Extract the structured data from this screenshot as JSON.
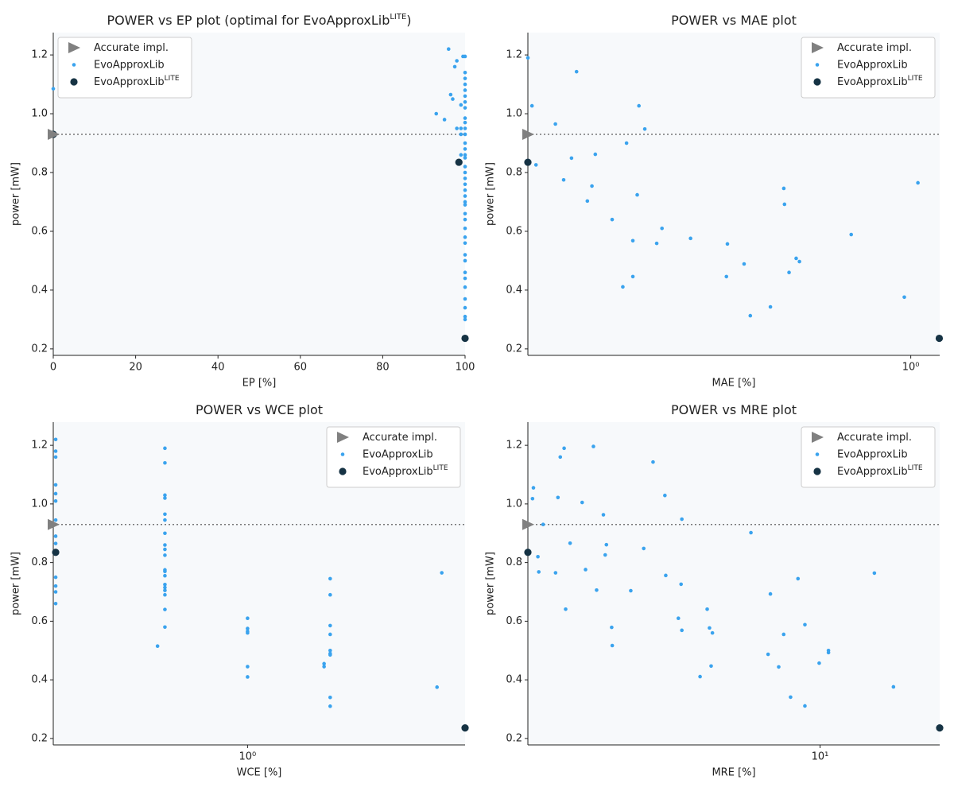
{
  "chart_data": [
    {
      "type": "scatter",
      "title": [
        "POWER vs EP plot (optimal for EvoApproxLib",
        "LITE",
        ")"
      ],
      "xlabel": "EP [%]",
      "ylabel": "power [mW]",
      "xscale": "linear",
      "xlim": [
        0,
        100
      ],
      "xticks": [
        0,
        20,
        40,
        60,
        80,
        100
      ],
      "ylim": [
        0.178,
        1.276
      ],
      "yticks": [
        0.2,
        0.4,
        0.6,
        0.8,
        {
          "value": 1,
          "label": "1.0"
        },
        1.2
      ],
      "legend": "upper left",
      "hline": true,
      "series": [
        {
          "name": "Accurate impl.",
          "color": "#808080",
          "marker": "triangle",
          "x": [
            0
          ],
          "values": [
            0.93
          ]
        },
        {
          "name": "EvoApproxLib",
          "color": "#3aa3ee",
          "marker": "dot",
          "x": [
            0,
            100,
            100,
            100,
            100,
            100,
            100,
            100,
            100,
            100,
            100,
            100,
            100,
            100,
            100,
            100,
            100,
            100,
            100,
            100,
            100,
            100,
            100,
            100,
            100,
            100,
            100,
            100,
            100,
            100,
            100,
            100,
            100,
            100,
            100,
            100,
            100,
            100,
            100,
            96,
            97.5,
            98,
            96.5,
            97,
            93,
            95,
            98,
            99,
            99,
            99.5,
            99,
            99
          ],
          "values": [
            1.085,
            1.195,
            1.14,
            1.12,
            1.1,
            1.08,
            1.06,
            1.04,
            1.02,
            0.985,
            0.97,
            0.95,
            0.93,
            0.9,
            0.88,
            0.86,
            0.85,
            0.82,
            0.8,
            0.78,
            0.76,
            0.74,
            0.72,
            0.7,
            0.69,
            0.66,
            0.64,
            0.61,
            0.58,
            0.56,
            0.52,
            0.5,
            0.46,
            0.44,
            0.41,
            0.37,
            0.34,
            0.31,
            0.3,
            1.22,
            1.16,
            1.18,
            1.065,
            1.05,
            1.0,
            0.98,
            0.95,
            0.95,
            1.03,
            1.195,
            0.93,
            0.86
          ]
        },
        {
          "name": "EvoApproxLib",
          "name_sup": "LITE",
          "color": "#163344",
          "marker": "circle",
          "x": [
            0,
            98.5,
            100
          ],
          "values": [
            0.93,
            0.835,
            0.236
          ]
        }
      ]
    },
    {
      "type": "scatter",
      "title": [
        "POWER vs MAE plot"
      ],
      "xlabel": "MAE [%]",
      "ylabel": "power [mW]",
      "xscale": "log",
      "xlim": [
        0.1,
        1.19
      ],
      "xticks": [
        {
          "value": 1,
          "label": "10⁰"
        }
      ],
      "ylim": [
        0.178,
        1.276
      ],
      "yticks": [
        0.2,
        0.4,
        0.6,
        0.8,
        {
          "value": 1,
          "label": "1.0"
        },
        1.2
      ],
      "legend": "upper right",
      "hline": true,
      "series": [
        {
          "name": "Accurate impl.",
          "color": "#808080",
          "marker": "triangle",
          "x": [
            0.1
          ],
          "values": [
            0.93
          ]
        },
        {
          "name": "EvoApproxLib",
          "color": "#3aa3ee",
          "marker": "dot",
          "x": [
            0.1,
            0.1025,
            0.118,
            0.134,
            0.13,
            0.105,
            0.124,
            0.147,
            0.15,
            0.143,
            0.181,
            0.195,
            0.202,
            0.193,
            0.166,
            0.188,
            0.224,
            0.217,
            0.188,
            0.177,
            0.266,
            0.332,
            0.33,
            0.367,
            0.381,
            0.43,
            0.466,
            0.468,
            0.481,
            0.502,
            0.512,
            0.699,
            0.962,
            1.044
          ],
          "values": [
            1.19,
            1.027,
            0.965,
            1.143,
            0.849,
            0.826,
            0.775,
            0.754,
            0.862,
            0.703,
            0.9,
            1.027,
            0.948,
            0.724,
            0.64,
            0.568,
            0.61,
            0.559,
            0.446,
            0.411,
            0.576,
            0.557,
            0.446,
            0.489,
            0.313,
            0.343,
            0.746,
            0.692,
            0.46,
            0.508,
            0.497,
            0.589,
            0.376,
            0.765
          ]
        },
        {
          "name": "EvoApproxLib",
          "name_sup": "LITE",
          "color": "#163344",
          "marker": "circle",
          "x": [
            0.1,
            1.187
          ],
          "values": [
            0.835,
            0.236
          ]
        }
      ]
    },
    {
      "type": "scatter",
      "title": [
        "POWER vs WCE plot"
      ],
      "xlabel": "WCE [%]",
      "ylabel": "power [mW]",
      "xscale": "log",
      "xlim": [
        0.196,
        6.2
      ],
      "xticks": [
        {
          "value": 1,
          "label": "10⁰"
        }
      ],
      "ylim": [
        0.178,
        1.279
      ],
      "yticks": [
        0.2,
        0.4,
        0.6,
        0.8,
        {
          "value": 1,
          "label": "1.0"
        },
        1.2
      ],
      "legend": "upper right",
      "hline": true,
      "series": [
        {
          "name": "Accurate impl.",
          "color": "#808080",
          "marker": "triangle",
          "x": [
            0.196
          ],
          "values": [
            0.93
          ]
        },
        {
          "name": "EvoApproxLib",
          "color": "#3aa3ee",
          "marker": "dot",
          "x": [
            0.2,
            0.2,
            0.2,
            0.2,
            0.2,
            0.2,
            0.2,
            0.2,
            0.2,
            0.2,
            0.2,
            0.2,
            0.2,
            0.5,
            0.5,
            0.5,
            0.5,
            0.5,
            0.5,
            0.5,
            0.5,
            0.5,
            0.5,
            0.5,
            0.5,
            0.5,
            0.5,
            0.5,
            0.5,
            0.5,
            0.5,
            0.5,
            0.47,
            1,
            1,
            1,
            1,
            1,
            1,
            2,
            2,
            2,
            2,
            2,
            2,
            2,
            2,
            2,
            1.9,
            1.9,
            4.9,
            5.1
          ],
          "values": [
            1.22,
            1.18,
            1.16,
            1.065,
            1.035,
            1.01,
            0.945,
            0.89,
            0.865,
            0.75,
            0.72,
            0.7,
            0.66,
            1.19,
            1.14,
            1.03,
            1.02,
            0.965,
            0.945,
            0.9,
            0.86,
            0.845,
            0.825,
            0.775,
            0.77,
            0.755,
            0.725,
            0.715,
            0.705,
            0.69,
            0.64,
            0.58,
            0.515,
            0.61,
            0.575,
            0.565,
            0.56,
            0.445,
            0.41,
            0.745,
            0.69,
            0.585,
            0.555,
            0.5,
            0.49,
            0.485,
            0.34,
            0.31,
            0.455,
            0.445,
            0.375,
            0.765
          ]
        },
        {
          "name": "EvoApproxLib",
          "name_sup": "LITE",
          "color": "#163344",
          "marker": "circle",
          "x": [
            0.2,
            6.2
          ],
          "values": [
            0.835,
            0.236
          ]
        }
      ]
    },
    {
      "type": "scatter",
      "title": [
        "POWER vs MRE plot"
      ],
      "xlabel": "MRE [%]",
      "ylabel": "power [mW]",
      "xscale": "log",
      "xlim": [
        1.84,
        20
      ],
      "xticks": [
        {
          "value": 10,
          "label": "10¹"
        }
      ],
      "ylim": [
        0.178,
        1.279
      ],
      "yticks": [
        0.2,
        0.4,
        0.6,
        0.8,
        {
          "value": 1,
          "label": "1.0"
        },
        1.2
      ],
      "legend": "upper right",
      "hline": true,
      "series": [
        {
          "name": "Accurate impl.",
          "color": "#808080",
          "marker": "triangle",
          "x": [
            1.84
          ],
          "values": [
            0.93
          ]
        },
        {
          "name": "EvoApproxLib",
          "color": "#3aa3ee",
          "marker": "dot",
          "x": [
            1.89,
            1.9,
            1.95,
            1.96,
            2.01,
            2.16,
            2.19,
            2.22,
            2.27,
            2.29,
            2.35,
            2.52,
            2.57,
            2.69,
            2.74,
            2.85,
            2.88,
            2.9,
            2.99,
            3.0,
            3.34,
            3.6,
            3.8,
            4.07,
            4.09,
            4.47,
            4.49,
            4.4,
            4.49,
            4.99,
            5.2,
            5.27,
            5.32,
            5.36,
            6.7,
            7.4,
            7.5,
            7.87,
            8.1,
            8.43,
            8.8,
            9.16,
            9.16,
            9.95,
            10.5,
            10.5,
            13.7,
            15.3
          ],
          "values": [
            1.018,
            1.055,
            0.82,
            0.768,
            0.93,
            0.765,
            1.022,
            1.16,
            1.19,
            0.641,
            0.866,
            1.005,
            0.776,
            1.196,
            0.706,
            0.963,
            0.826,
            0.861,
            0.579,
            0.517,
            0.704,
            0.848,
            1.143,
            1.029,
            0.756,
            0.726,
            0.948,
            0.61,
            0.569,
            0.411,
            0.641,
            0.577,
            0.447,
            0.56,
            0.902,
            0.487,
            0.693,
            0.444,
            0.555,
            0.341,
            0.745,
            0.588,
            0.311,
            0.457,
            0.5,
            0.493,
            0.764,
            0.376
          ]
        },
        {
          "name": "EvoApproxLib",
          "name_sup": "LITE",
          "color": "#163344",
          "marker": "circle",
          "x": [
            1.84,
            20
          ],
          "values": [
            0.835,
            0.236
          ]
        }
      ]
    }
  ]
}
